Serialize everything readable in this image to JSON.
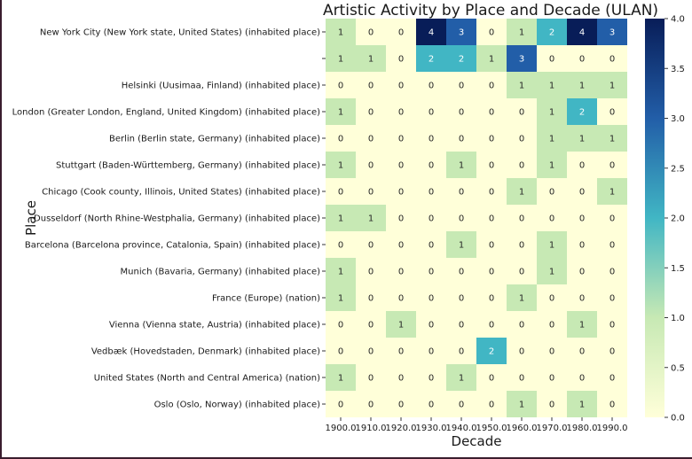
{
  "chart_data": {
    "type": "heatmap",
    "title": "Artistic Activity by Place and Decade (ULAN)",
    "xlabel": "Decade",
    "ylabel": "Place",
    "x": [
      "1900.0",
      "1910.0",
      "1920.0",
      "1930.0",
      "1940.0",
      "1950.0",
      "1960.0",
      "1970.0",
      "1980.0",
      "1990.0"
    ],
    "y": [
      "New York City (New York state, United States) (inhabited place)",
      "",
      "Helsinki (Uusimaa, Finland) (inhabited place)",
      "London (Greater London, England, United Kingdom) (inhabited place)",
      "Berlin (Berlin state, Germany) (inhabited place)",
      "Stuttgart (Baden-Württemberg, Germany) (inhabited place)",
      "Chicago (Cook county, Illinois, United States) (inhabited place)",
      "Dusseldorf (North Rhine-Westphalia, Germany) (inhabited place)",
      "Barcelona (Barcelona province, Catalonia, Spain) (inhabited place)",
      "Munich (Bavaria, Germany) (inhabited place)",
      "France (Europe) (nation)",
      "Vienna (Vienna state, Austria) (inhabited place)",
      "Vedbæk (Hovedstaden, Denmark) (inhabited place)",
      "United States (North and Central America) (nation)",
      "Oslo (Oslo, Norway) (inhabited place)"
    ],
    "values": [
      [
        1,
        0,
        0,
        4,
        3,
        0,
        1,
        2,
        4,
        3
      ],
      [
        1,
        1,
        0,
        2,
        2,
        1,
        3,
        0,
        0,
        0
      ],
      [
        0,
        0,
        0,
        0,
        0,
        0,
        1,
        1,
        1,
        1
      ],
      [
        1,
        0,
        0,
        0,
        0,
        0,
        0,
        1,
        2,
        0
      ],
      [
        0,
        0,
        0,
        0,
        0,
        0,
        0,
        1,
        1,
        1
      ],
      [
        1,
        0,
        0,
        0,
        1,
        0,
        0,
        1,
        0,
        0
      ],
      [
        0,
        0,
        0,
        0,
        0,
        0,
        1,
        0,
        0,
        1
      ],
      [
        1,
        1,
        0,
        0,
        0,
        0,
        0,
        0,
        0,
        0
      ],
      [
        0,
        0,
        0,
        0,
        1,
        0,
        0,
        1,
        0,
        0
      ],
      [
        1,
        0,
        0,
        0,
        0,
        0,
        0,
        1,
        0,
        0
      ],
      [
        1,
        0,
        0,
        0,
        0,
        0,
        1,
        0,
        0,
        0
      ],
      [
        0,
        0,
        1,
        0,
        0,
        0,
        0,
        0,
        1,
        0
      ],
      [
        0,
        0,
        0,
        0,
        0,
        2,
        0,
        0,
        0,
        0
      ],
      [
        1,
        0,
        0,
        0,
        1,
        0,
        0,
        0,
        0,
        0
      ],
      [
        0,
        0,
        0,
        0,
        0,
        0,
        1,
        0,
        1,
        0
      ]
    ],
    "vmin": 0,
    "vmax": 4,
    "colormap": "YlGnBu",
    "colorbar_ticks": [
      "0.0",
      "0.5",
      "1.0",
      "1.5",
      "2.0",
      "2.5",
      "3.0",
      "3.5",
      "4.0"
    ],
    "grid": false,
    "colors": {
      "v0": "#ffffd9",
      "v1": "#c7e9b4",
      "v2": "#41b6c4",
      "v3": "#225ea8",
      "v4": "#081d58"
    }
  }
}
